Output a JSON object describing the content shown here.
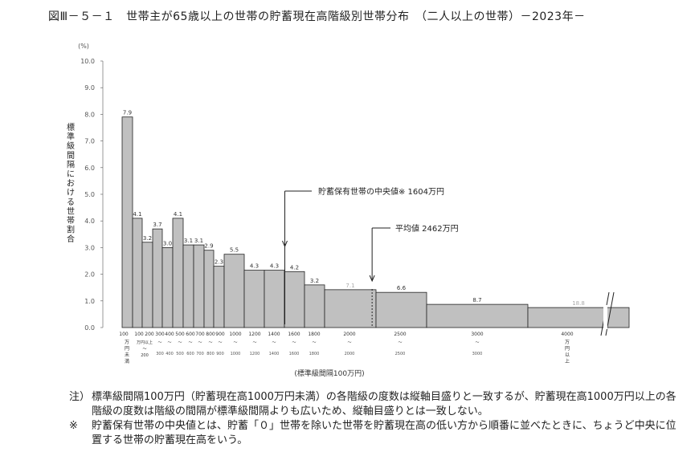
{
  "title": "図Ⅲ－５－１　世帯主が65歳以上の世帯の貯蓄現在高階級別世帯分布　（二人以上の世帯）－2023年－",
  "chart_data": {
    "type": "bar",
    "ylabel": "標準級間隔における世帯割合",
    "yunit": "(%)",
    "xlabel": "(標準級間隔100万円)",
    "ylim": [
      0,
      10
    ],
    "yticks": [
      "0.0",
      "1.0",
      "2.0",
      "3.0",
      "4.0",
      "5.0",
      "6.0",
      "7.0",
      "8.0",
      "9.0",
      "10.0"
    ],
    "x_ticks": [
      "100",
      "100",
      "200",
      "300",
      "400",
      "500",
      "600",
      "700",
      "800",
      "900",
      "1000",
      "1200",
      "1400",
      "1600",
      "1800",
      "2000",
      "2500",
      "3000",
      "4000"
    ],
    "bins": [
      {
        "from": 0,
        "to": 100,
        "value": 7.9,
        "label": "7.9"
      },
      {
        "from": 100,
        "to": 200,
        "value": 4.1,
        "label": "4.1"
      },
      {
        "from": 200,
        "to": 300,
        "value": 3.2,
        "label": "3.2"
      },
      {
        "from": 300,
        "to": 400,
        "value": 3.7,
        "label": "3.7"
      },
      {
        "from": 400,
        "to": 500,
        "value": 3.0,
        "label": "3.0"
      },
      {
        "from": 500,
        "to": 600,
        "value": 4.1,
        "label": "4.1"
      },
      {
        "from": 600,
        "to": 700,
        "value": 3.1,
        "label": "3.1"
      },
      {
        "from": 700,
        "to": 800,
        "value": 3.1,
        "label": "3.1"
      },
      {
        "from": 800,
        "to": 900,
        "value": 2.9,
        "label": "2.9"
      },
      {
        "from": 900,
        "to": 1000,
        "value": 2.3,
        "label": "2.3"
      },
      {
        "from": 1000,
        "to": 1200,
        "value": 2.75,
        "label": "5.5"
      },
      {
        "from": 1200,
        "to": 1400,
        "value": 2.15,
        "label": "4.3"
      },
      {
        "from": 1400,
        "to": 1600,
        "value": 2.15,
        "label": "4.3"
      },
      {
        "from": 1600,
        "to": 1800,
        "value": 2.1,
        "label": "4.2"
      },
      {
        "from": 1800,
        "to": 2000,
        "value": 1.6,
        "label": "3.2"
      },
      {
        "from": 2000,
        "to": 2500,
        "value": 1.42,
        "label": "7.1"
      },
      {
        "from": 2500,
        "to": 3000,
        "value": 1.32,
        "label": "6.6"
      },
      {
        "from": 3000,
        "to": 4000,
        "value": 0.87,
        "label": "8.7"
      },
      {
        "from": 4000,
        "to": null,
        "value": 0.75,
        "label": "18.8"
      }
    ],
    "x_sub_labels": {
      "first": [
        "万",
        "円",
        "未",
        "満"
      ],
      "second": [
        "万円以上",
        "〜",
        "200"
      ],
      "last": [
        "万",
        "円",
        "以",
        "上"
      ]
    },
    "annotations": {
      "median": {
        "label": "貯蓄保有世帯の中央値",
        "mark": "※",
        "value": "1604万円",
        "x": 1604
      },
      "mean": {
        "label": "平均値",
        "value": "2462万円",
        "x": 2462
      }
    }
  },
  "notes": [
    {
      "mark": "注）",
      "text": "標準級間隔100万円（貯蓄現在高1000万円未満）の各階級の度数は縦軸目盛りと一致するが、貯蓄現在高1000万円以上の各階級の度数は階級の間隔が標準級間隔よりも広いため、縦軸目盛りとは一致しない。"
    },
    {
      "mark": "※",
      "text": "貯蓄保有世帯の中央値とは、貯蓄「０」世帯を除いた世帯を貯蓄現在高の低い方から順番に並べたときに、ちょうど中央に位置する世帯の貯蓄現在高をいう。"
    }
  ],
  "colors": {
    "bar": "#c0c0c0",
    "stroke": "#222222",
    "axis": "#555555",
    "faint": "#999999"
  }
}
